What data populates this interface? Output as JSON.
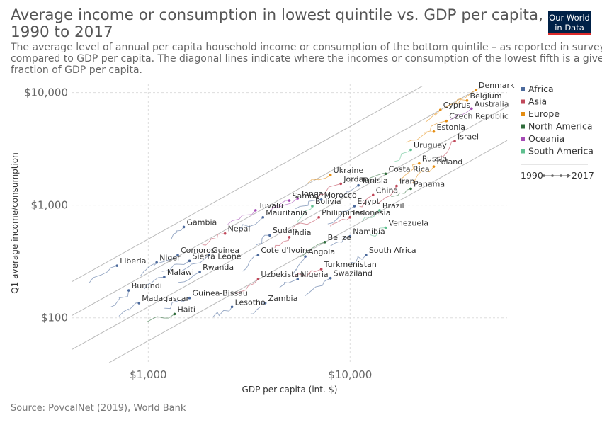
{
  "header": {
    "title_line1": "Average income or consumption in lowest quintile vs. GDP per capita,",
    "title_line2": "1990 to 2017",
    "subtitle_line1": "The average level of annual per capita household income or consumption of the bottom quintile – as reported in surveys –",
    "subtitle_line2": "compared to GDP per capita. The diagonal lines indicate where the incomes or consumption of the lowest fifth is a given",
    "subtitle_line3": "fraction of GDP per capita."
  },
  "logo": {
    "line1": "Our World",
    "line2": "in Data"
  },
  "source": "Source: PovcalNet (2019), World Bank",
  "colors": {
    "Africa": "#4c6a9c",
    "Asia": "#c0485a",
    "Europe": "#e58d12",
    "North America": "#2f6c3b",
    "Oceania": "#a54ab5",
    "South America": "#5fbf8f"
  },
  "chart_data": {
    "type": "scatter",
    "x_scale": "log",
    "y_scale": "log",
    "xlabel": "GDP per capita (int.-$)",
    "ylabel": "Q1 average income/consumption",
    "xlim": [
      420,
      60000
    ],
    "ylim": [
      40,
      12000
    ],
    "x_ticks": [
      {
        "value": 1000,
        "label": "$1,000"
      },
      {
        "value": 10000,
        "label": "$10,000"
      }
    ],
    "y_ticks": [
      {
        "value": 100,
        "label": "$100"
      },
      {
        "value": 1000,
        "label": "$1,000"
      },
      {
        "value": 10000,
        "label": "$10,000"
      }
    ],
    "grid": true,
    "legend_position": "right",
    "legend": [
      "Africa",
      "Asia",
      "Europe",
      "North America",
      "Oceania",
      "South America"
    ],
    "timeline": {
      "start": "1990",
      "end": "2017"
    },
    "reference_ratios": [
      0.5,
      0.25,
      0.125,
      0.0625
    ],
    "points": [
      {
        "label": "Denmark",
        "region": "Europe",
        "x": 42000,
        "y": 10500
      },
      {
        "label": "Belgium",
        "region": "Europe",
        "x": 38000,
        "y": 8500
      },
      {
        "label": "Cyprus",
        "region": "Europe",
        "x": 28000,
        "y": 7000
      },
      {
        "label": "Australia",
        "region": "Oceania",
        "x": 40000,
        "y": 7200
      },
      {
        "label": "Czech Republic",
        "region": "Europe",
        "x": 30000,
        "y": 5600
      },
      {
        "label": "Estonia",
        "region": "Europe",
        "x": 26000,
        "y": 4500
      },
      {
        "label": "Israel",
        "region": "Asia",
        "x": 33000,
        "y": 3700
      },
      {
        "label": "Uruguay",
        "region": "South America",
        "x": 20000,
        "y": 3100
      },
      {
        "label": "Russia",
        "region": "Europe",
        "x": 22000,
        "y": 2350
      },
      {
        "label": "Poland",
        "region": "Europe",
        "x": 26000,
        "y": 2200
      },
      {
        "label": "Costa Rica",
        "region": "North America",
        "x": 15000,
        "y": 1900
      },
      {
        "label": "Ukraine",
        "region": "Europe",
        "x": 8000,
        "y": 1850
      },
      {
        "label": "Jordan",
        "region": "Asia",
        "x": 9000,
        "y": 1550
      },
      {
        "label": "Tunisia",
        "region": "Africa",
        "x": 11000,
        "y": 1500
      },
      {
        "label": "Iran",
        "region": "Asia",
        "x": 17000,
        "y": 1480
      },
      {
        "label": "Panama",
        "region": "North America",
        "x": 20000,
        "y": 1400
      },
      {
        "label": "China",
        "region": "Asia",
        "x": 13000,
        "y": 1230
      },
      {
        "label": "Tonga",
        "region": "Oceania",
        "x": 5500,
        "y": 1150
      },
      {
        "label": "Morocco",
        "region": "Africa",
        "x": 7200,
        "y": 1120
      },
      {
        "label": "Samoa",
        "region": "Oceania",
        "x": 5000,
        "y": 1100
      },
      {
        "label": "Bolivia",
        "region": "South America",
        "x": 6500,
        "y": 980
      },
      {
        "label": "Egypt",
        "region": "Africa",
        "x": 10500,
        "y": 980
      },
      {
        "label": "Brazil",
        "region": "South America",
        "x": 14000,
        "y": 900
      },
      {
        "label": "Tuvalu",
        "region": "Oceania",
        "x": 3400,
        "y": 900
      },
      {
        "label": "Mauritania",
        "region": "Africa",
        "x": 3700,
        "y": 780
      },
      {
        "label": "Philippines",
        "region": "Asia",
        "x": 7000,
        "y": 780
      },
      {
        "label": "Indonesia",
        "region": "Asia",
        "x": 10000,
        "y": 780
      },
      {
        "label": "Gambia",
        "region": "Africa",
        "x": 1500,
        "y": 640
      },
      {
        "label": "Venezuela",
        "region": "South America",
        "x": 15000,
        "y": 630
      },
      {
        "label": "Nepal",
        "region": "Asia",
        "x": 2400,
        "y": 560
      },
      {
        "label": "Sudan",
        "region": "Africa",
        "x": 4000,
        "y": 540
      },
      {
        "label": "India",
        "region": "Asia",
        "x": 5000,
        "y": 520
      },
      {
        "label": "Namibia",
        "region": "Africa",
        "x": 10000,
        "y": 530
      },
      {
        "label": "Belize",
        "region": "North America",
        "x": 7500,
        "y": 470
      },
      {
        "label": "Comoros",
        "region": "Africa",
        "x": 1400,
        "y": 360
      },
      {
        "label": "Guinea",
        "region": "Africa",
        "x": 2000,
        "y": 360
      },
      {
        "label": "Cote d'Ivoire",
        "region": "Africa",
        "x": 3500,
        "y": 360
      },
      {
        "label": "Angola",
        "region": "Africa",
        "x": 6000,
        "y": 350
      },
      {
        "label": "South Africa",
        "region": "Africa",
        "x": 12000,
        "y": 360
      },
      {
        "label": "Niger",
        "region": "Africa",
        "x": 1100,
        "y": 310
      },
      {
        "label": "Sierra Leone",
        "region": "Africa",
        "x": 1600,
        "y": 320
      },
      {
        "label": "Liberia",
        "region": "Africa",
        "x": 700,
        "y": 290
      },
      {
        "label": "Turkmenistan",
        "region": "Asia",
        "x": 7200,
        "y": 270
      },
      {
        "label": "Rwanda",
        "region": "Africa",
        "x": 1800,
        "y": 255
      },
      {
        "label": "Malawi",
        "region": "Africa",
        "x": 1200,
        "y": 230
      },
      {
        "label": "Nigeria",
        "region": "Africa",
        "x": 5500,
        "y": 220
      },
      {
        "label": "Swaziland",
        "region": "Africa",
        "x": 8000,
        "y": 225
      },
      {
        "label": "Uzbekistan",
        "region": "Asia",
        "x": 3500,
        "y": 220
      },
      {
        "label": "Burundi",
        "region": "Africa",
        "x": 800,
        "y": 175
      },
      {
        "label": "Guinea-Bissau",
        "region": "Africa",
        "x": 1600,
        "y": 150
      },
      {
        "label": "Madagascar",
        "region": "Africa",
        "x": 900,
        "y": 135
      },
      {
        "label": "Zambia",
        "region": "Africa",
        "x": 3800,
        "y": 135
      },
      {
        "label": "Lesotho",
        "region": "Africa",
        "x": 2600,
        "y": 125
      },
      {
        "label": "Haiti",
        "region": "North America",
        "x": 1350,
        "y": 108
      }
    ]
  }
}
